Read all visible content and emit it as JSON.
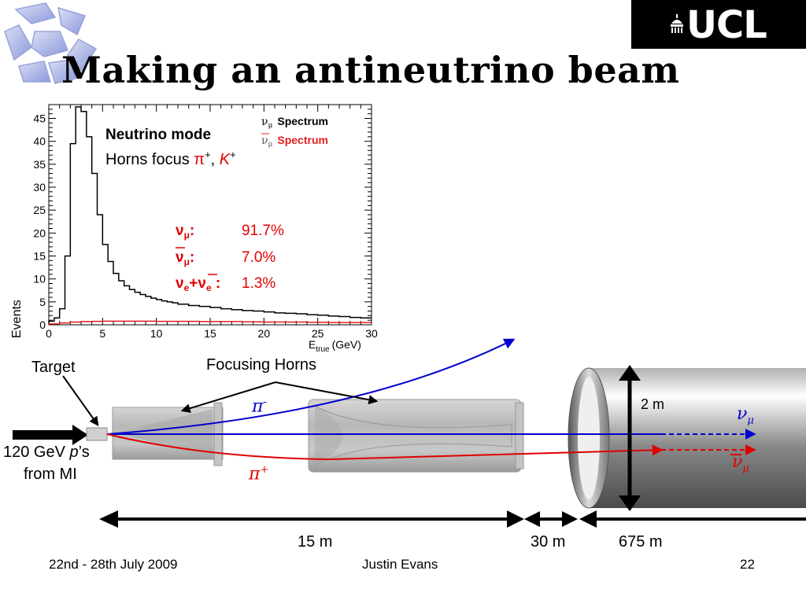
{
  "slide": {
    "title": "Making an antineutrino beam",
    "logo_text": "UCL",
    "footer": {
      "date": "22nd - 28th July 2009",
      "author": "Justin Evans",
      "page": "22"
    }
  },
  "chart_data": {
    "type": "line",
    "xlabel_main": "E",
    "xlabel_sub": "true",
    "xlabel_unit": "(GeV)",
    "ylabel": "Events",
    "xlim": [
      0,
      30
    ],
    "ylim": [
      0,
      48
    ],
    "xticks": [
      0,
      5,
      10,
      15,
      20,
      25,
      30
    ],
    "yticks": [
      0,
      5,
      10,
      15,
      20,
      25,
      30,
      35,
      40,
      45
    ],
    "legend_position": "top-right",
    "legend": [
      {
        "symbol": "ν",
        "sub": "μ",
        "bar": false,
        "text": "Spectrum",
        "color": "#000000"
      },
      {
        "symbol": "ν",
        "sub": "μ",
        "bar": true,
        "text": "Spectrum",
        "color": "#e02020"
      }
    ],
    "series": [
      {
        "color": "#000000",
        "bin_edges": [
          0.0,
          0.5,
          1.0,
          1.5,
          2.0,
          2.5,
          3.0,
          3.5,
          4.0,
          4.5,
          5.0,
          5.5,
          6.0,
          6.5,
          7.0,
          7.5,
          8.0,
          8.5,
          9.0,
          9.5,
          10.0,
          10.5,
          11.0,
          11.5,
          12.0,
          13,
          14,
          15,
          16,
          17,
          18,
          19,
          20,
          21,
          22,
          23,
          24,
          25,
          26,
          27,
          28,
          29,
          30
        ],
        "values": [
          0.8,
          1.5,
          3.5,
          15.0,
          39.5,
          47.5,
          46.5,
          41.0,
          33.0,
          24.0,
          17.5,
          13.8,
          11.2,
          9.6,
          8.5,
          7.7,
          7.1,
          6.6,
          6.2,
          5.8,
          5.5,
          5.2,
          5.0,
          4.8,
          4.5,
          4.2,
          4.0,
          3.8,
          3.5,
          3.3,
          3.1,
          3.0,
          2.8,
          2.6,
          2.5,
          2.4,
          2.2,
          2.1,
          1.9,
          1.8,
          1.6,
          1.5
        ]
      },
      {
        "color": "#e02020",
        "bin_edges": [
          0,
          1,
          2,
          3,
          4,
          5,
          6,
          8,
          10,
          12,
          14,
          16,
          18,
          20,
          22,
          24,
          26,
          28,
          30
        ],
        "values": [
          0.2,
          0.4,
          0.6,
          0.7,
          0.75,
          0.8,
          0.8,
          0.8,
          0.75,
          0.75,
          0.7,
          0.7,
          0.65,
          0.6,
          0.6,
          0.55,
          0.5,
          0.5
        ]
      }
    ],
    "annotations": {
      "mode_title": "Neutrino mode",
      "horns_prefix": "Horns focus ",
      "pi_plus": "π",
      "plus_sup": "+",
      "k_plus": "K",
      "comma": ", ",
      "fractions": [
        {
          "label": "ν",
          "sub": "μ",
          "bar": false,
          "value": "91.7%"
        },
        {
          "label": "ν",
          "sub": "μ",
          "bar": true,
          "value": "7.0%"
        },
        {
          "label": "ν",
          "sub": "e",
          "extra": "+ν",
          "extra_sub": "e",
          "value": "1.3%"
        }
      ]
    }
  },
  "diagram": {
    "target_label": "Target",
    "horns_label": "Focusing Horns",
    "protons_line1_a": "120 GeV ",
    "protons_line1_b": "p",
    "protons_line1_c": "’s",
    "protons_line2": "from MI",
    "pi_minus": "π",
    "pi_minus_sup": "-",
    "pi_plus": "π",
    "pi_plus_sup": "+",
    "nu_top": "ν",
    "nu_top_sub": "μ",
    "nu_bottom": "ν",
    "nu_bottom_sub": "μ",
    "decay_pipe_diameter": "2 m",
    "distance_1": "15 m",
    "distance_2": "30 m",
    "distance_3": "675 m",
    "colors": {
      "pi_minus": "#0000cc",
      "pi_plus": "#e00000",
      "beam": "#0000cc"
    }
  }
}
